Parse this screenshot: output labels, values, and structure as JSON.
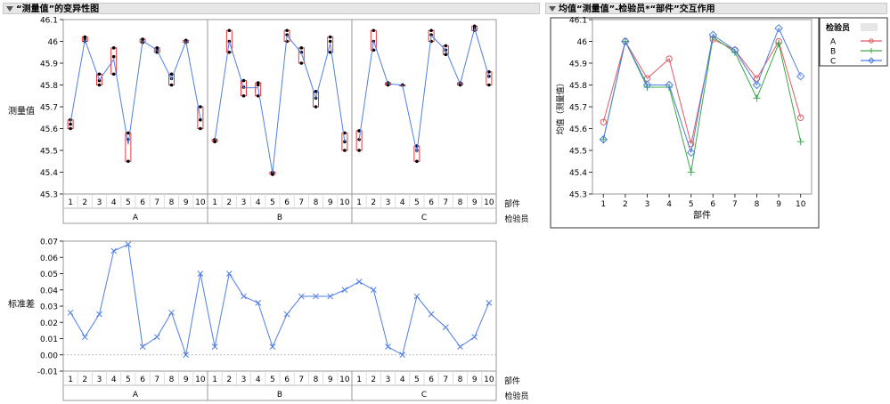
{
  "headers": {
    "left": "“测量值”的变异性图",
    "right": "均值“测量值”-检验员*“部件”交互作用"
  },
  "colors": {
    "line": "#4f7fe3",
    "box": "#e0242c",
    "A": "#e05a62",
    "B": "#3aa84a",
    "C": "#4f7fe3"
  },
  "chart_data": [
    {
      "type": "line",
      "title": "“测量值”的变异性图",
      "ylabel": "测量值",
      "ylim": [
        45.3,
        46.1
      ],
      "yticks": [
        "45.3",
        "45.4",
        "45.5",
        "45.6",
        "45.7",
        "45.8",
        "45.9",
        "46",
        "46.1"
      ],
      "x_level_labels": [
        "部件",
        "检验员"
      ],
      "groups": [
        "A",
        "B",
        "C"
      ],
      "parts": [
        "1",
        "2",
        "3",
        "4",
        "5",
        "6",
        "7",
        "8",
        "9",
        "10"
      ],
      "series": [
        {
          "group": "A",
          "points": [
            [
              45.6,
              45.62,
              45.64
            ],
            [
              46,
              46.01,
              46.02
            ],
            [
              45.8,
              45.82,
              45.85
            ],
            [
              45.85,
              45.93,
              45.97
            ],
            [
              45.45,
              45.55,
              45.58
            ],
            [
              45.995,
              46.0,
              46.01
            ],
            [
              45.95,
              45.96,
              45.97
            ],
            [
              45.8,
              45.83,
              45.85
            ],
            [
              45.995,
              46.0,
              46.005
            ],
            [
              45.6,
              45.64,
              45.7
            ]
          ]
        },
        {
          "group": "B",
          "points": [
            [
              45.54,
              45.545,
              45.55
            ],
            [
              45.95,
              46.0,
              46.05
            ],
            [
              45.75,
              45.79,
              45.82
            ],
            [
              45.75,
              45.8,
              45.81
            ],
            [
              45.39,
              45.395,
              45.4
            ],
            [
              46.0,
              46.03,
              46.05
            ],
            [
              45.9,
              45.95,
              45.97
            ],
            [
              45.7,
              45.74,
              45.77
            ],
            [
              45.95,
              46.0,
              46.02
            ],
            [
              45.5,
              45.54,
              45.58
            ]
          ]
        },
        {
          "group": "C",
          "points": [
            [
              45.5,
              45.55,
              45.59
            ],
            [
              45.96,
              46.0,
              46.05
            ],
            [
              45.8,
              45.805,
              45.81
            ],
            [
              45.8,
              45.8,
              45.8
            ],
            [
              45.45,
              45.5,
              45.52
            ],
            [
              46.0,
              46.03,
              46.05
            ],
            [
              45.94,
              45.96,
              45.98
            ],
            [
              45.8,
              45.805,
              45.81
            ],
            [
              46.05,
              46.06,
              46.07
            ],
            [
              45.8,
              45.84,
              45.86
            ]
          ]
        }
      ],
      "means": {
        "A": [
          45.627,
          46.007,
          45.823,
          45.917,
          45.527,
          46.002,
          45.96,
          45.827,
          46.0,
          45.647
        ],
        "B": [
          45.545,
          46.0,
          45.787,
          45.787,
          45.395,
          46.027,
          45.947,
          45.74,
          45.99,
          45.54
        ],
        "C": [
          45.547,
          46.003,
          45.805,
          45.8,
          45.49,
          46.027,
          45.96,
          45.805,
          46.06,
          45.837
        ]
      }
    },
    {
      "type": "line",
      "title": "标准差",
      "ylabel": "标准差",
      "ylim": [
        -0.01,
        0.07
      ],
      "yticks": [
        "-0.01",
        "0.00",
        "0.01",
        "0.02",
        "0.03",
        "0.04",
        "0.05",
        "0.06",
        "0.07"
      ],
      "x_level_labels": [
        "部件",
        "检验员"
      ],
      "groups": [
        "A",
        "B",
        "C"
      ],
      "parts": [
        "1",
        "2",
        "3",
        "4",
        "5",
        "6",
        "7",
        "8",
        "9",
        "10"
      ],
      "values": {
        "A": [
          0.026,
          0.011,
          0.025,
          0.064,
          0.068,
          0.005,
          0.011,
          0.026,
          0.0,
          0.05
        ],
        "B": [
          0.005,
          0.05,
          0.036,
          0.032,
          0.005,
          0.025,
          0.036,
          0.036,
          0.036,
          0.04
        ],
        "C": [
          0.045,
          0.04,
          0.005,
          0.0,
          0.036,
          0.025,
          0.017,
          0.005,
          0.011,
          0.032
        ]
      }
    },
    {
      "type": "line",
      "title": "均值“测量值”-检验员*“部件”交互作用",
      "ylabel": "均值（测量值）",
      "xlabel": "部件",
      "ylim": [
        45.3,
        46.1
      ],
      "yticks": [
        "45.3",
        "45.4",
        "45.5",
        "45.6",
        "45.7",
        "45.8",
        "45.9",
        "46",
        "46.1"
      ],
      "categories": [
        "1",
        "2",
        "3",
        "4",
        "5",
        "6",
        "7",
        "8",
        "9",
        "10"
      ],
      "legend_title": "检验员",
      "series": [
        {
          "name": "A",
          "marker": "circle",
          "values": [
            45.63,
            46.0,
            45.83,
            45.92,
            45.53,
            46.01,
            45.96,
            45.83,
            46.0,
            45.65
          ]
        },
        {
          "name": "B",
          "marker": "plus",
          "values": [
            45.55,
            46.0,
            45.79,
            45.79,
            45.4,
            46.02,
            45.95,
            45.74,
            45.99,
            45.54
          ]
        },
        {
          "name": "C",
          "marker": "diamond",
          "values": [
            45.55,
            46.0,
            45.8,
            45.8,
            45.49,
            46.03,
            45.96,
            45.8,
            46.06,
            45.84
          ]
        }
      ]
    }
  ]
}
